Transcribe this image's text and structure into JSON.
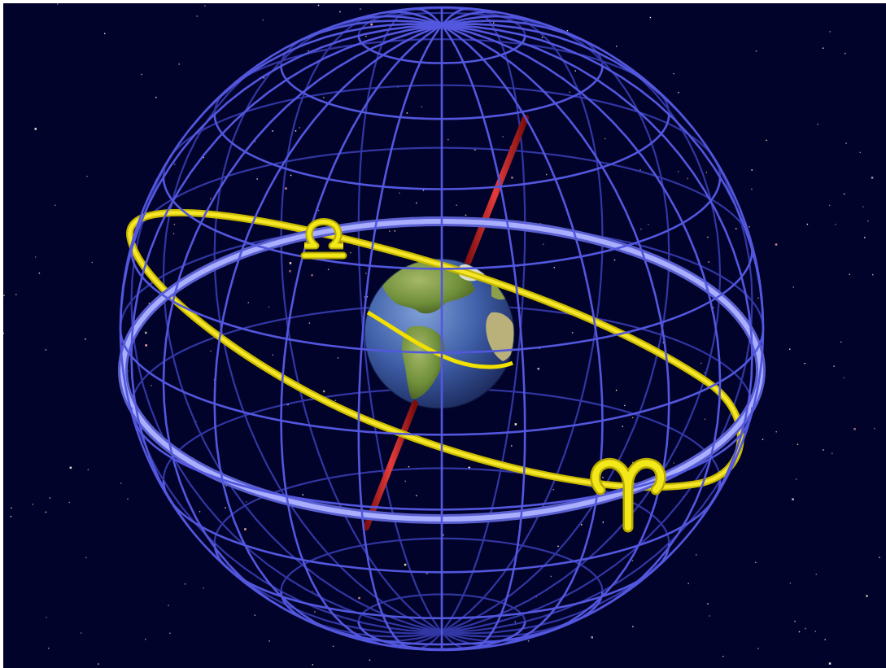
{
  "scene": {
    "subject": "celestial-sphere",
    "colors": {
      "space": "#02032a",
      "sphere_grid": "#4a4fd8",
      "sphere_grid_light": "#7e84f0",
      "celestial_equator": "#9aa0ff",
      "ecliptic": "#f1e000",
      "axis": "#c91e1e",
      "zodiac_symbols": "#f2e81a",
      "earth_ocean": "#3f5fa8",
      "earth_land": "#6f8f3a"
    },
    "symbols": {
      "libra": "♎",
      "aries": "♈"
    },
    "icons": [
      "libra-icon",
      "aries-icon",
      "earth-icon"
    ]
  }
}
